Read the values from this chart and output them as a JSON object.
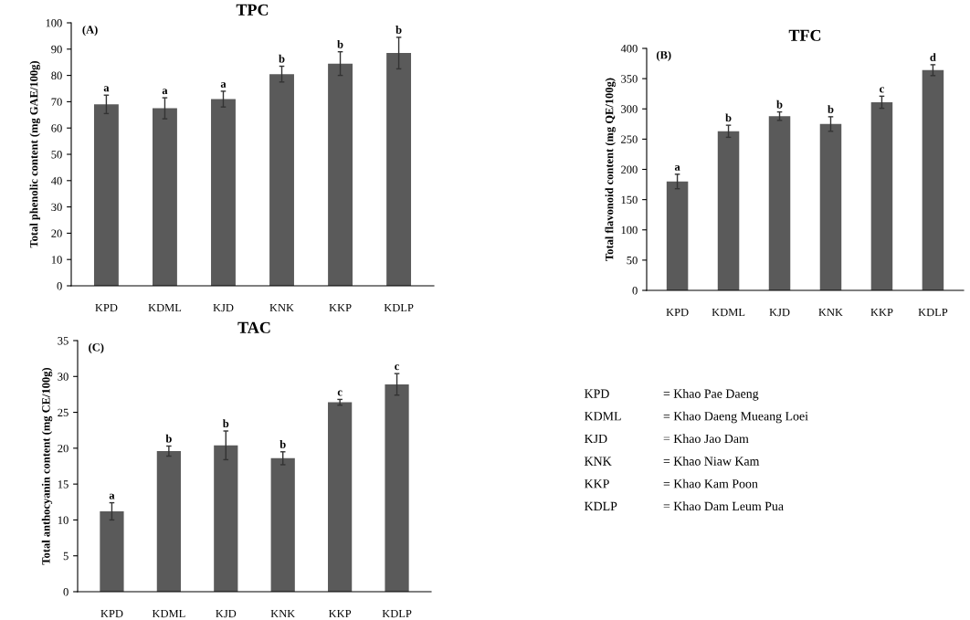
{
  "chart_data": [
    {
      "type": "bar",
      "title": "TPC",
      "ylabel": "Total phenolic content (mg GAE/100g)",
      "categories": [
        "KPD",
        "KDML",
        "KJD",
        "KNK",
        "KKP",
        "KDLP"
      ],
      "color": "#5a5a5a",
      "values": [
        69,
        67.5,
        71,
        80.5,
        84.5,
        88.5
      ],
      "errors": [
        3.5,
        4,
        3,
        3,
        4.5,
        6
      ],
      "ylim": [
        0,
        100
      ],
      "yticks": [
        0,
        10,
        20,
        30,
        40,
        50,
        60,
        70,
        80,
        90,
        100
      ],
      "grid": false,
      "legend": false,
      "annotations": [
        "(A)",
        {
          "text": "a",
          "x": "KPD",
          "y": 72.5
        },
        {
          "text": "a",
          "x": "KDML",
          "y": 71.5
        },
        {
          "text": "a",
          "x": "KJD",
          "y": 74
        },
        {
          "text": "b",
          "x": "KNK",
          "y": 83.5
        },
        {
          "text": "b",
          "x": "KKP",
          "y": 89
        },
        {
          "text": "b",
          "x": "KDLP",
          "y": 94.5
        }
      ]
    },
    {
      "type": "bar",
      "title": "TFC",
      "ylabel": "Total flavonoid content (mg QE/100g)",
      "categories": [
        "KPD",
        "KDML",
        "KJD",
        "KNK",
        "KKP",
        "KDLP"
      ],
      "color": "#5a5a5a",
      "values": [
        180,
        263,
        288,
        275,
        311,
        364
      ],
      "errors": [
        12,
        10,
        7,
        12,
        10,
        9
      ],
      "ylim": [
        0,
        400
      ],
      "yticks": [
        0,
        50,
        100,
        150,
        200,
        250,
        300,
        350,
        400
      ],
      "grid": false,
      "legend": false,
      "annotations": [
        "(B)",
        {
          "text": "a",
          "x": "KPD",
          "y": 192
        },
        {
          "text": "b",
          "x": "KDML",
          "y": 273
        },
        {
          "text": "b",
          "x": "KJD",
          "y": 295
        },
        {
          "text": "b",
          "x": "KNK",
          "y": 287
        },
        {
          "text": "c",
          "x": "KKP",
          "y": 321
        },
        {
          "text": "d",
          "x": "KDLP",
          "y": 373
        }
      ]
    },
    {
      "type": "bar",
      "title": "TAC",
      "ylabel": "Total anthocyanin content (mg CE/100g)",
      "categories": [
        "KPD",
        "KDML",
        "KJD",
        "KNK",
        "KKP",
        "KDLP"
      ],
      "color": "#5a5a5a",
      "values": [
        11.2,
        19.6,
        20.4,
        18.6,
        26.4,
        28.9
      ],
      "errors": [
        1.2,
        0.7,
        2,
        0.9,
        0.4,
        1.5
      ],
      "ylim": [
        0,
        35
      ],
      "yticks": [
        0,
        5,
        10,
        15,
        20,
        25,
        30,
        35
      ],
      "grid": false,
      "legend": false,
      "annotations": [
        "(C)",
        {
          "text": "a",
          "x": "KPD",
          "y": 12.4
        },
        {
          "text": "b",
          "x": "KDML",
          "y": 20.3
        },
        {
          "text": "b",
          "x": "KJD",
          "y": 22.4
        },
        {
          "text": "b",
          "x": "KNK",
          "y": 19.5
        },
        {
          "text": "c",
          "x": "KKP",
          "y": 26.8
        },
        {
          "text": "c",
          "x": "KDLP",
          "y": 30.4
        }
      ]
    },
    {
      "type": "other",
      "annotations": [
        "KPD",
        "= Khao Pae Daeng",
        "KDML",
        "= Khao Daeng Mueang Loei",
        "KJD",
        "= Khao Jao Dam",
        "KNK",
        "= Khao Niaw Kam",
        "KKP",
        "= Khao Kam Poon",
        "KDLP",
        "= Khao Dam Leum Pua"
      ]
    }
  ]
}
